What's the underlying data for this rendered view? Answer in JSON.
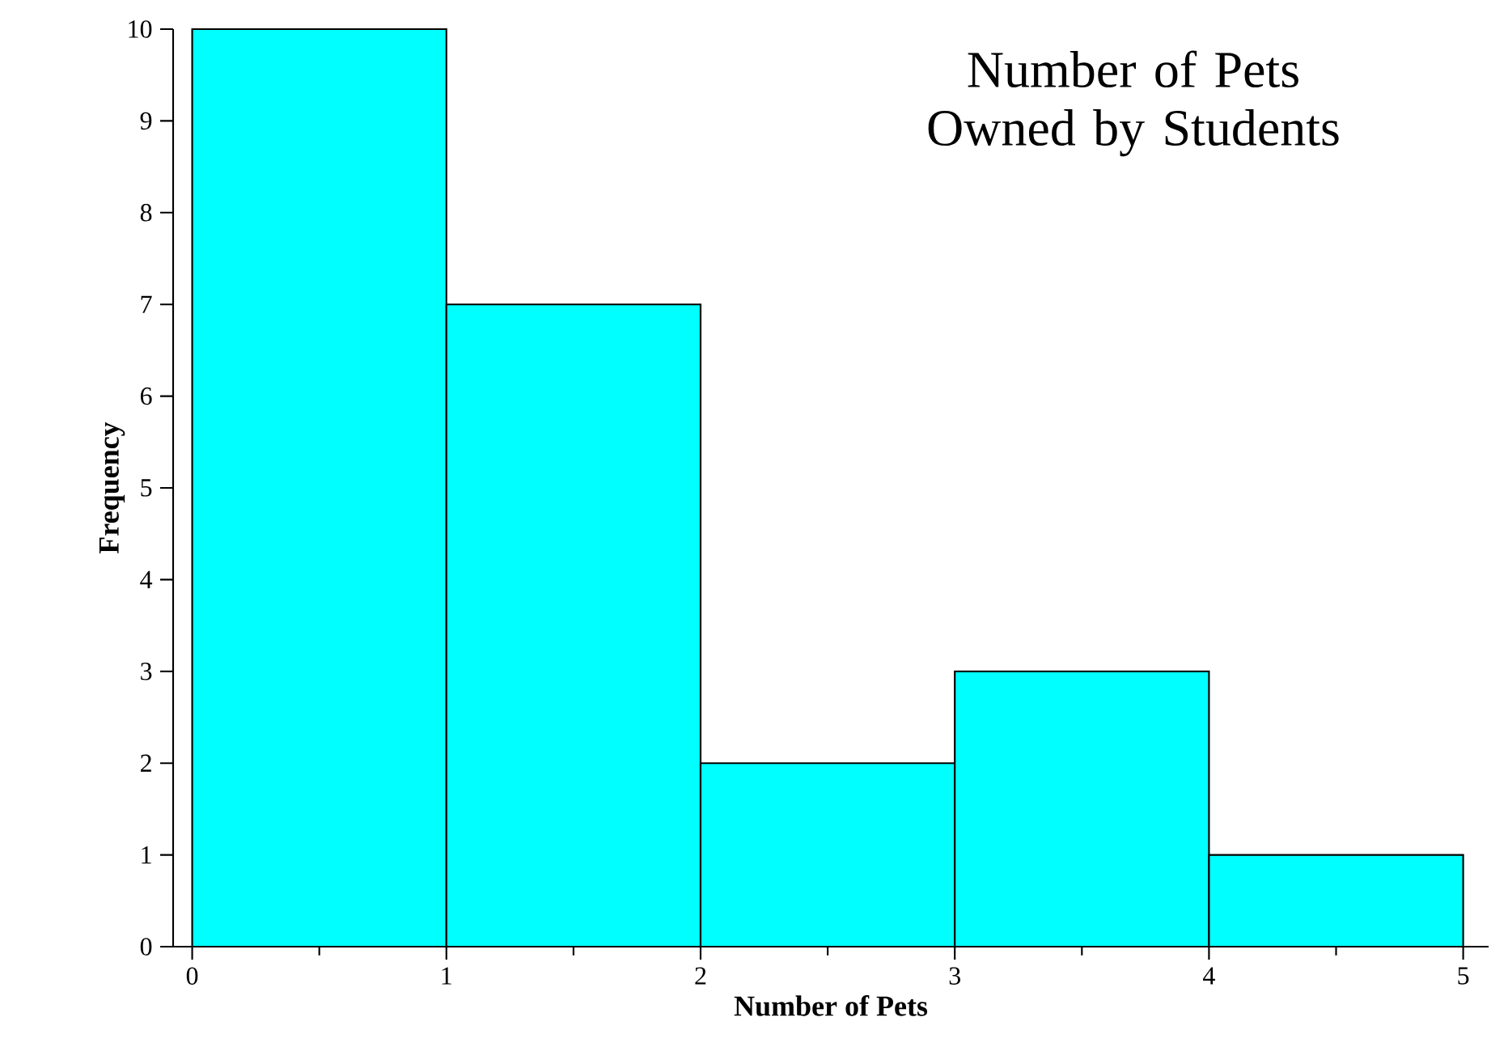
{
  "chart_data": {
    "type": "histogram",
    "title": "Number of Pets Owned by Students",
    "xlabel": "Number of Pets",
    "ylabel": "Frequency",
    "bins": [
      0,
      1,
      2,
      3,
      4,
      5
    ],
    "values": [
      10,
      7,
      2,
      3,
      1
    ],
    "color": "#00ffff",
    "xlim": [
      -0.075,
      5.1
    ],
    "ylim": [
      0,
      10
    ],
    "xticks": [
      0,
      1,
      2,
      3,
      4,
      5
    ],
    "yticks": [
      0,
      1,
      2,
      3,
      4,
      5,
      6,
      7,
      8,
      9,
      10
    ],
    "grid": false
  }
}
